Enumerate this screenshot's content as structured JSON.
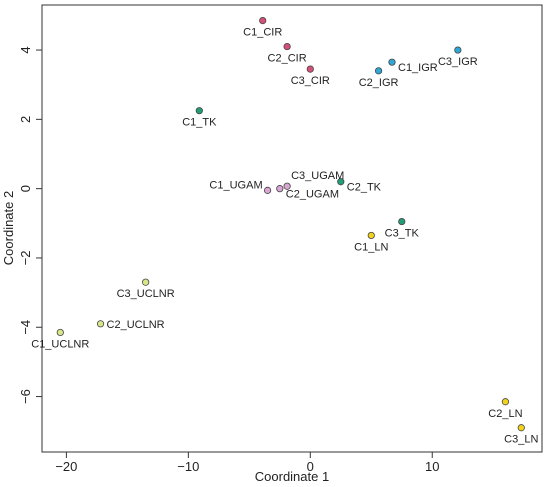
{
  "chart_data": {
    "type": "scatter",
    "xlabel": "Coordinate 1",
    "ylabel": "Coordinate 2",
    "xlim": [
      -22,
      19
    ],
    "ylim": [
      -7.6,
      5.3
    ],
    "xticks": [
      -20,
      -10,
      0,
      10
    ],
    "yticks": [
      -6,
      -4,
      -2,
      0,
      2,
      4
    ],
    "grid": false,
    "legend": "none",
    "points": [
      {
        "label": "C1_CIR",
        "x": -3.9,
        "y": 4.85,
        "color": "#d64f79",
        "label_pos": "below"
      },
      {
        "label": "C2_CIR",
        "x": -1.9,
        "y": 4.1,
        "color": "#d64f79",
        "label_pos": "below"
      },
      {
        "label": "C3_CIR",
        "x": 0.0,
        "y": 3.45,
        "color": "#d64f79",
        "label_pos": "below"
      },
      {
        "label": "C1_IGR",
        "x": 6.7,
        "y": 3.65,
        "color": "#2ea7d8",
        "label_pos": "below-right"
      },
      {
        "label": "C2_IGR",
        "x": 5.6,
        "y": 3.4,
        "color": "#2ea7d8",
        "label_pos": "below"
      },
      {
        "label": "C3_IGR",
        "x": 12.1,
        "y": 4.0,
        "color": "#2ea7d8",
        "label_pos": "below"
      },
      {
        "label": "C1_TK",
        "x": -9.1,
        "y": 2.25,
        "color": "#1f9e78",
        "label_pos": "below"
      },
      {
        "label": "C2_TK",
        "x": 2.5,
        "y": 0.2,
        "color": "#1f9e78",
        "label_pos": "below-right"
      },
      {
        "label": "C3_TK",
        "x": 7.5,
        "y": -0.95,
        "color": "#1f9e78",
        "label_pos": "below"
      },
      {
        "label": "C1_UGAM",
        "x": -3.5,
        "y": -0.05,
        "color": "#d9a6d4",
        "label_pos": "left"
      },
      {
        "label": "C2_UGAM",
        "x": -2.5,
        "y": 0.0,
        "color": "#d9a6d4",
        "label_pos": "below-right"
      },
      {
        "label": "C3_UGAM",
        "x": -1.9,
        "y": 0.07,
        "color": "#d9a6d4",
        "label_pos": "above-right"
      },
      {
        "label": "C1_LN",
        "x": 5.0,
        "y": -1.35,
        "color": "#f2d21c",
        "label_pos": "below"
      },
      {
        "label": "C2_LN",
        "x": 16.0,
        "y": -6.15,
        "color": "#f2d21c",
        "label_pos": "below"
      },
      {
        "label": "C3_LN",
        "x": 17.3,
        "y": -6.9,
        "color": "#f2d21c",
        "label_pos": "below"
      },
      {
        "label": "C1_UCLNR",
        "x": -20.5,
        "y": -4.15,
        "color": "#d8e68a",
        "label_pos": "below"
      },
      {
        "label": "C2_UCLNR",
        "x": -17.2,
        "y": -3.9,
        "color": "#d8e68a",
        "label_pos": "right"
      },
      {
        "label": "C3_UCLNR",
        "x": -13.5,
        "y": -2.7,
        "color": "#d8e68a",
        "label_pos": "below"
      }
    ]
  }
}
